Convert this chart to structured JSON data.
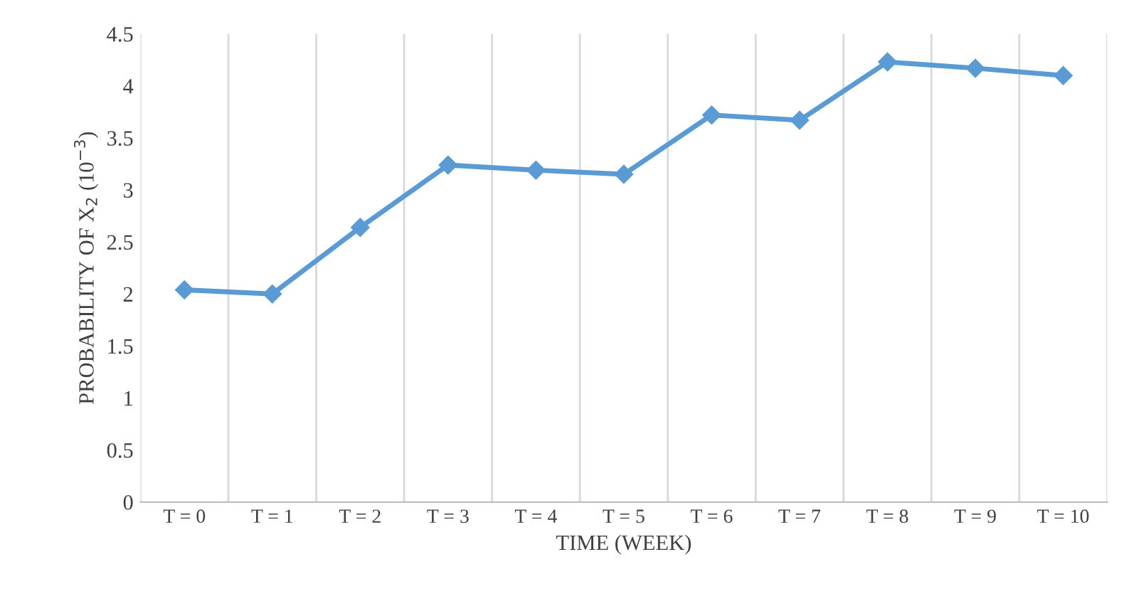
{
  "chart_data": {
    "type": "line",
    "xlabel": "TIME (WEEK)",
    "ylabel": "PROBABILITY OF X$_{2}$ (10$^{−3}$)",
    "categories": [
      "T = 0",
      "T = 1",
      "T = 2",
      "T = 3",
      "T = 4",
      "T = 5",
      "T = 6",
      "T = 7",
      "T = 8",
      "T = 9",
      "T = 10"
    ],
    "series": [
      {
        "color": "#5b9bd5",
        "values": [
          2.04,
          2.0,
          2.64,
          3.24,
          3.19,
          3.15,
          3.72,
          3.67,
          4.23,
          4.17,
          4.1
        ]
      }
    ],
    "ylim": [
      0,
      4.5
    ],
    "yticks": [
      0,
      0.5,
      1,
      1.5,
      2,
      2.5,
      3,
      3.5,
      4,
      4.5
    ],
    "grid": "x",
    "marker": "diamond",
    "line_style": "solid",
    "legend": false
  }
}
